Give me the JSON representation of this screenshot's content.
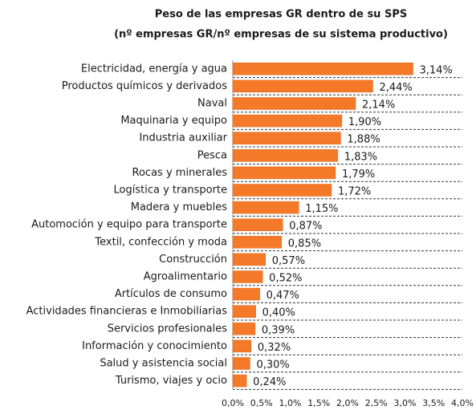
{
  "chart_data": {
    "type": "bar",
    "orientation": "horizontal",
    "title": "Peso de las empresas GR dentro de su SPS",
    "subtitle": "(nº empresas GR/nº empresas de su sistema productivo)",
    "categories": [
      "Electricidad, energía y agua",
      "Productos químicos y derivados",
      "Naval",
      "Maquinaria y equipo",
      "Industria auxiliar",
      "Pesca",
      "Rocas y minerales",
      "Logística y transporte",
      "Madera y muebles",
      "Automoción y equipo para transporte",
      "Textil, confección y moda",
      "Construcción",
      "Agroalimentario",
      "Artículos de consumo",
      "Actividades financieras e Inmobiliarias",
      "Servicios profesionales",
      "Información y conocimiento",
      "Salud y asistencia social",
      "Turismo, viajes y ocio"
    ],
    "values": [
      3.14,
      2.44,
      2.14,
      1.9,
      1.88,
      1.83,
      1.79,
      1.72,
      1.15,
      0.87,
      0.85,
      0.57,
      0.52,
      0.47,
      0.4,
      0.39,
      0.32,
      0.3,
      0.24
    ],
    "value_labels": [
      "3,14%",
      "2,44%",
      "2,14%",
      "1,90%",
      "1,88%",
      "1,83%",
      "1,79%",
      "1,72%",
      "1,15%",
      "0,87%",
      "0,85%",
      "0,57%",
      "0,52%",
      "0,47%",
      "0,40%",
      "0,39%",
      "0,32%",
      "0,30%",
      "0,24%"
    ],
    "color": "#f47a2a",
    "xlim": [
      0,
      4
    ],
    "xticks": [
      {
        "value": 0,
        "label": "0,0%"
      },
      {
        "value": 0.5,
        "label": "0,5%"
      },
      {
        "value": 1,
        "label": "1,0%"
      },
      {
        "value": 1.5,
        "label": "1,5%"
      },
      {
        "value": 2,
        "label": "2,0%"
      },
      {
        "value": 2.5,
        "label": "2,5%"
      },
      {
        "value": 3,
        "label": "3,0%"
      },
      {
        "value": 3.5,
        "label": "3,5%"
      },
      {
        "value": 4,
        "label": "4,0%"
      }
    ],
    "grid": true
  }
}
